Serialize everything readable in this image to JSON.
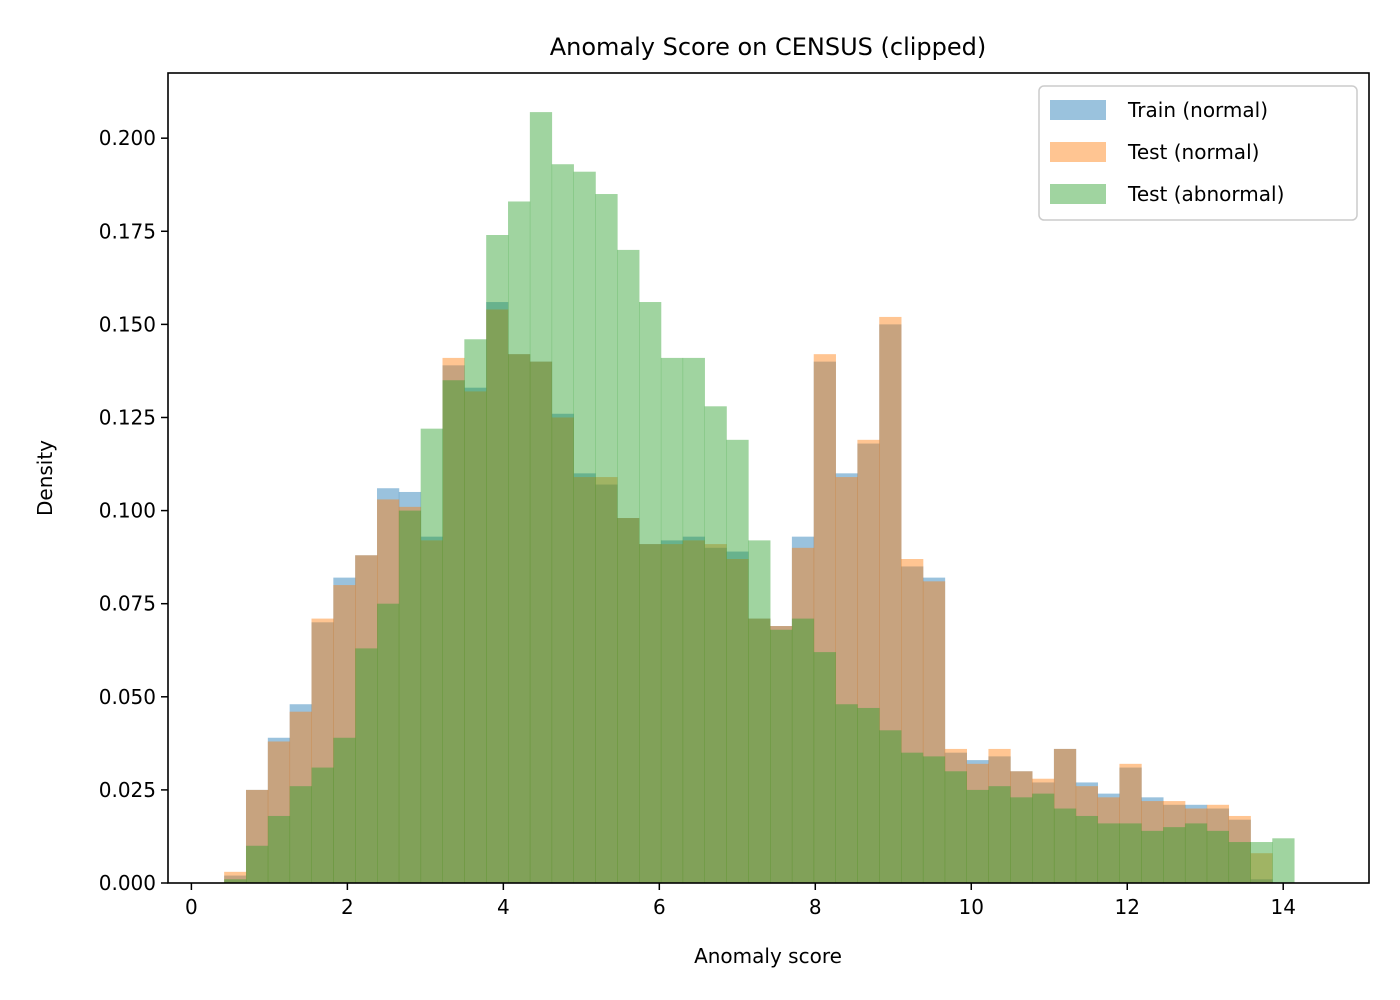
{
  "chart_data": {
    "type": "histogram",
    "title": "Anomaly Score on CENSUS (clipped)",
    "xlabel": "Anomaly score",
    "ylabel": "Density",
    "xlim": [
      -0.3,
      15.1
    ],
    "ylim": [
      0,
      0.2175
    ],
    "x_ticks": [
      0,
      2,
      4,
      6,
      8,
      10,
      12,
      14
    ],
    "x_tick_labels": [
      "0",
      "2",
      "4",
      "6",
      "8",
      "10",
      "12",
      "14"
    ],
    "y_ticks": [
      0,
      0.025,
      0.05,
      0.075,
      0.1,
      0.125,
      0.15,
      0.175,
      0.2
    ],
    "y_tick_labels": [
      "0.000",
      "0.025",
      "0.050",
      "0.075",
      "0.100",
      "0.125",
      "0.150",
      "0.175",
      "0.200"
    ],
    "legend_position": "top-right",
    "bins_start": 0.42,
    "bin_width": 0.28,
    "series": [
      {
        "name": "Train (normal)",
        "color": "#1f77b4",
        "alpha": 0.45,
        "values": [
          0.002,
          0.025,
          0.039,
          0.048,
          0.07,
          0.082,
          0.088,
          0.106,
          0.105,
          0.093,
          0.139,
          0.133,
          0.156,
          0.142,
          0.14,
          0.126,
          0.11,
          0.107,
          0.098,
          0.091,
          0.092,
          0.093,
          0.09,
          0.089,
          0.071,
          0.069,
          0.093,
          0.14,
          0.11,
          0.118,
          0.15,
          0.085,
          0.082,
          0.035,
          0.033,
          0.034,
          0.03,
          0.027,
          0.036,
          0.027,
          0.024,
          0.031,
          0.023,
          0.021,
          0.021,
          0.02,
          0.017,
          0.001,
          0
        ]
      },
      {
        "name": "Test (normal)",
        "color": "#ff7f0e",
        "alpha": 0.45,
        "values": [
          0.003,
          0.025,
          0.038,
          0.046,
          0.071,
          0.08,
          0.088,
          0.103,
          0.101,
          0.092,
          0.141,
          0.132,
          0.154,
          0.142,
          0.14,
          0.125,
          0.109,
          0.109,
          0.098,
          0.091,
          0.091,
          0.092,
          0.091,
          0.087,
          0.071,
          0.069,
          0.09,
          0.142,
          0.109,
          0.119,
          0.152,
          0.087,
          0.081,
          0.036,
          0.032,
          0.036,
          0.03,
          0.028,
          0.036,
          0.026,
          0.023,
          0.032,
          0.022,
          0.022,
          0.02,
          0.021,
          0.018,
          0.008,
          0
        ]
      },
      {
        "name": "Test (abnormal)",
        "color": "#2ca02c",
        "alpha": 0.45,
        "values": [
          0.001,
          0.01,
          0.018,
          0.026,
          0.031,
          0.039,
          0.063,
          0.075,
          0.1,
          0.122,
          0.135,
          0.146,
          0.174,
          0.183,
          0.207,
          0.193,
          0.191,
          0.185,
          0.17,
          0.156,
          0.141,
          0.141,
          0.128,
          0.119,
          0.092,
          0.068,
          0.071,
          0.062,
          0.048,
          0.047,
          0.041,
          0.035,
          0.034,
          0.03,
          0.025,
          0.026,
          0.023,
          0.024,
          0.02,
          0.018,
          0.016,
          0.016,
          0.014,
          0.015,
          0.016,
          0.014,
          0.011,
          0.011,
          0.012
        ]
      }
    ]
  }
}
